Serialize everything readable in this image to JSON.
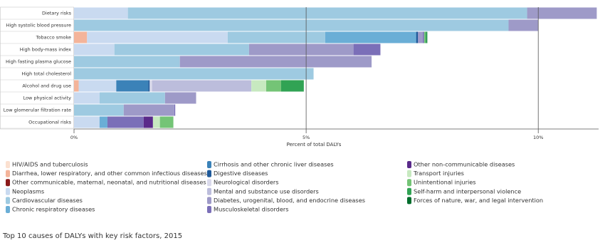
{
  "chart_data": {
    "type": "stacked-bar-horizontal",
    "title": "Top 10 causes of DALYs with key risk factors, 2015",
    "xlabel": "Percent of total DALYs",
    "categories": [
      "Dietary risks",
      "High systolic blood pressure",
      "Tobacco smoke",
      "High body-mass index",
      "High fasting plasma glucose",
      "High total cholesterol",
      "Alcohol and drug use",
      "Low physical activity",
      "Low glomerular filtration rate",
      "Occupational risks"
    ],
    "xlim": [
      0,
      11.3
    ],
    "xticks": [
      {
        "value": 0,
        "label": "0%"
      },
      {
        "value": 5,
        "label": "5%"
      },
      {
        "value": 10,
        "label": "10%"
      }
    ],
    "grid": true,
    "series": [
      {
        "name": "HIV/AIDS and tuberculosis",
        "color": "#fbe0d0",
        "values": [
          null,
          null,
          null,
          null,
          null,
          null,
          null,
          null,
          null,
          null
        ]
      },
      {
        "name": "Diarrhea, lower respiratory, and other common infectious diseases",
        "color": "#f4b49a",
        "values": [
          null,
          null,
          0.28,
          null,
          null,
          null,
          0.1,
          null,
          null,
          null
        ]
      },
      {
        "name": "Other communicable, maternal, neonatal, and nutritional diseases",
        "color": "#8b1a1a",
        "values": [
          null,
          null,
          null,
          null,
          null,
          null,
          null,
          null,
          null,
          null
        ]
      },
      {
        "name": "Neoplasms",
        "color": "#c9daf0",
        "values": [
          1.16,
          null,
          3.03,
          0.87,
          null,
          null,
          0.81,
          0.55,
          null,
          0.55
        ]
      },
      {
        "name": "Cardiovascular diseases",
        "color": "#9ecae1",
        "values": [
          8.6,
          9.36,
          2.1,
          2.9,
          2.28,
          5.16,
          null,
          1.41,
          1.07,
          null
        ]
      },
      {
        "name": "Chronic respiratory diseases",
        "color": "#6aaed6",
        "values": [
          null,
          null,
          1.96,
          null,
          null,
          null,
          null,
          null,
          null,
          0.17
        ]
      },
      {
        "name": "Cirrhosis and other chronic liver diseases",
        "color": "#3b82b8",
        "values": [
          null,
          null,
          null,
          null,
          null,
          null,
          0.69,
          null,
          null,
          null
        ]
      },
      {
        "name": "Digestive diseases",
        "color": "#1f5a9a",
        "values": [
          null,
          null,
          0.04,
          null,
          null,
          null,
          0.03,
          null,
          null,
          null
        ]
      },
      {
        "name": "Neurological disorders",
        "color": "#dadaeb",
        "values": [
          null,
          null,
          null,
          null,
          null,
          null,
          0.05,
          null,
          null,
          null
        ]
      },
      {
        "name": "Mental and substance use disorders",
        "color": "#bcbddc",
        "values": [
          null,
          null,
          null,
          null,
          null,
          null,
          2.14,
          null,
          null,
          null
        ]
      },
      {
        "name": "Diabetes, urogenital, blood, and endocrine diseases",
        "color": "#9e9ac8",
        "values": [
          1.5,
          0.64,
          0.1,
          2.25,
          4.13,
          null,
          null,
          0.67,
          1.09,
          null
        ]
      },
      {
        "name": "Musculoskeletal disorders",
        "color": "#7b6fb8",
        "values": [
          null,
          null,
          0.03,
          0.58,
          null,
          null,
          null,
          null,
          0.02,
          0.78
        ]
      },
      {
        "name": "Other non-communicable diseases",
        "color": "#5a2a8a",
        "values": [
          null,
          null,
          null,
          null,
          null,
          null,
          null,
          null,
          null,
          0.2
        ]
      },
      {
        "name": "Transport injuries",
        "color": "#c7e9c0",
        "values": [
          null,
          null,
          null,
          null,
          null,
          null,
          0.32,
          null,
          null,
          0.15
        ]
      },
      {
        "name": "Unintentional injuries",
        "color": "#74c476",
        "values": [
          null,
          null,
          0.03,
          null,
          null,
          null,
          0.32,
          null,
          null,
          0.29
        ]
      },
      {
        "name": "Self-harm and interpersonal violence",
        "color": "#31a354",
        "values": [
          null,
          null,
          0.03,
          null,
          null,
          null,
          0.49,
          null,
          null,
          null
        ]
      },
      {
        "name": "Forces of nature, war, and legal intervention",
        "color": "#006d2c",
        "values": [
          null,
          null,
          0.01,
          null,
          null,
          null,
          null,
          null,
          null,
          null
        ]
      }
    ]
  }
}
